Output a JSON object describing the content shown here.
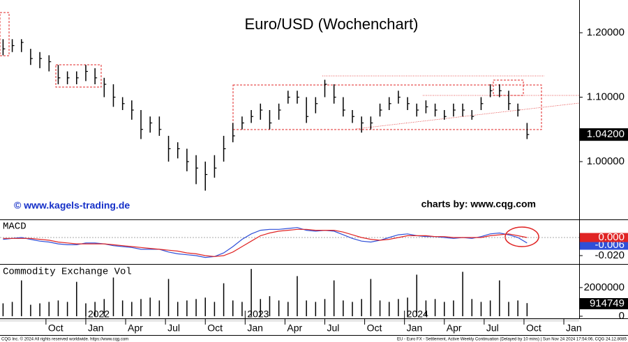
{
  "chart_data": [
    {
      "type": "ohlc",
      "title": "Euro/USD (Wochenchart)",
      "watermark_left": "© www.kagels-trading.de",
      "watermark_right": "charts by: www.cqg.com",
      "x": [
        0,
        3,
        6,
        9,
        12,
        15,
        18,
        21,
        24,
        27,
        30,
        33,
        36,
        39,
        42,
        45,
        48,
        51,
        54,
        57,
        60,
        63,
        66,
        69,
        72,
        75,
        78,
        81,
        84,
        87,
        90,
        93,
        96,
        99,
        102,
        105,
        108,
        111,
        114,
        117,
        120,
        123,
        126,
        129,
        132,
        135,
        138,
        141,
        144,
        147,
        150,
        153,
        156,
        159,
        162,
        165,
        168,
        171
      ],
      "high": [
        1.19,
        1.19,
        1.19,
        1.175,
        1.17,
        1.165,
        1.15,
        1.14,
        1.14,
        1.15,
        1.145,
        1.13,
        1.12,
        1.1,
        1.095,
        1.08,
        1.07,
        1.07,
        1.04,
        1.03,
        1.02,
        1.01,
        1.0,
        1.01,
        1.04,
        1.06,
        1.07,
        1.08,
        1.09,
        1.08,
        1.09,
        1.11,
        1.11,
        1.1,
        1.1,
        1.127,
        1.12,
        1.1,
        1.08,
        1.07,
        1.07,
        1.09,
        1.1,
        1.11,
        1.1,
        1.09,
        1.095,
        1.09,
        1.08,
        1.09,
        1.09,
        1.08,
        1.1,
        1.12,
        1.12,
        1.11,
        1.09,
        1.06
      ],
      "low": [
        1.165,
        1.17,
        1.17,
        1.15,
        1.145,
        1.14,
        1.12,
        1.12,
        1.12,
        1.125,
        1.12,
        1.1,
        1.085,
        1.08,
        1.065,
        1.035,
        1.045,
        1.04,
        1.0,
        1.005,
        0.985,
        0.965,
        0.955,
        0.975,
        1.0,
        1.03,
        1.05,
        1.06,
        1.065,
        1.05,
        1.065,
        1.09,
        1.09,
        1.06,
        1.075,
        1.1,
        1.09,
        1.07,
        1.06,
        1.045,
        1.05,
        1.07,
        1.08,
        1.09,
        1.08,
        1.07,
        1.075,
        1.07,
        1.065,
        1.07,
        1.07,
        1.065,
        1.08,
        1.1,
        1.1,
        1.08,
        1.07,
        1.035
      ],
      "close": [
        1.175,
        1.18,
        1.185,
        1.16,
        1.16,
        1.155,
        1.13,
        1.13,
        1.13,
        1.14,
        1.13,
        1.12,
        1.1,
        1.09,
        1.08,
        1.05,
        1.06,
        1.05,
        1.02,
        1.02,
        1.0,
        0.99,
        0.98,
        0.99,
        1.02,
        1.04,
        1.06,
        1.07,
        1.08,
        1.06,
        1.08,
        1.1,
        1.1,
        1.07,
        1.09,
        1.12,
        1.1,
        1.08,
        1.07,
        1.06,
        1.06,
        1.08,
        1.09,
        1.1,
        1.09,
        1.08,
        1.085,
        1.08,
        1.07,
        1.08,
        1.08,
        1.07,
        1.09,
        1.11,
        1.11,
        1.09,
        1.08,
        1.042
      ],
      "color": "#000000",
      "xlim": [
        -1,
        188
      ],
      "ylim": [
        0.9103,
        1.2508
      ],
      "yticks": [
        {
          "value": 1.0,
          "label": "1.00000"
        },
        {
          "value": 1.1,
          "label": "1.10000"
        },
        {
          "value": 1.2,
          "label": "1.20000"
        }
      ],
      "last_value": {
        "value": 1.042,
        "label": "1.04200"
      }
    },
    {
      "type": "line",
      "title": "MACD",
      "x": [
        0,
        3,
        6,
        9,
        12,
        15,
        18,
        21,
        24,
        27,
        30,
        33,
        36,
        39,
        42,
        45,
        48,
        51,
        54,
        57,
        60,
        63,
        66,
        69,
        72,
        75,
        78,
        81,
        84,
        87,
        90,
        93,
        96,
        99,
        102,
        105,
        108,
        111,
        114,
        117,
        120,
        123,
        126,
        129,
        132,
        135,
        138,
        141,
        144,
        147,
        150,
        153,
        156,
        159,
        162,
        165,
        168,
        171
      ],
      "series": [
        {
          "color": "#2f4fd8",
          "values": [
            -0.002,
            -0.001,
            0,
            -0.002,
            -0.004,
            -0.005,
            -0.007,
            -0.008,
            -0.008,
            -0.006,
            -0.006,
            -0.007,
            -0.009,
            -0.01,
            -0.011,
            -0.013,
            -0.013,
            -0.013,
            -0.016,
            -0.018,
            -0.019,
            -0.02,
            -0.022,
            -0.021,
            -0.017,
            -0.01,
            -0.002,
            0.004,
            0.008,
            0.009,
            0.009,
            0.01,
            0.011,
            0.008,
            0.007,
            0.008,
            0.007,
            0.003,
            -0.001,
            -0.004,
            -0.005,
            -0.003,
            0,
            0.003,
            0.004,
            0.002,
            0.001,
            0.001,
            0,
            -0.001,
            0,
            -0.001,
            0.001,
            0.004,
            0.005,
            0.003,
            0,
            -0.006
          ],
          "last_value": {
            "value": -0.006,
            "label": "-0.006"
          }
        },
        {
          "color": "#e02424",
          "values": [
            -0.001,
            -0.001,
            -0.001,
            -0.001,
            -0.002,
            -0.003,
            -0.005,
            -0.006,
            -0.007,
            -0.007,
            -0.007,
            -0.007,
            -0.008,
            -0.009,
            -0.01,
            -0.011,
            -0.012,
            -0.013,
            -0.014,
            -0.015,
            -0.017,
            -0.018,
            -0.02,
            -0.021,
            -0.02,
            -0.016,
            -0.01,
            -0.004,
            0.002,
            0.005,
            0.007,
            0.008,
            0.009,
            0.009,
            0.008,
            0.008,
            0.008,
            0.006,
            0.003,
            0,
            -0.002,
            -0.003,
            -0.002,
            0,
            0.002,
            0.002,
            0.002,
            0.001,
            0.001,
            0,
            0,
            0,
            0,
            0.002,
            0.003,
            0.004,
            0.002,
            0
          ],
          "last_value": {
            "value": 0,
            "label": "0.000"
          }
        }
      ],
      "xlim": [
        -1,
        188
      ],
      "ylim": [
        -0.0285,
        0.0177
      ],
      "yticks": [
        {
          "value": -0.02,
          "label": "-0.020"
        }
      ]
    },
    {
      "type": "bar",
      "title": "Commodity Exchange Vol",
      "x": [
        0,
        3,
        6,
        9,
        12,
        15,
        18,
        21,
        24,
        27,
        30,
        33,
        36,
        39,
        42,
        45,
        48,
        51,
        54,
        57,
        60,
        63,
        66,
        69,
        72,
        75,
        78,
        81,
        84,
        87,
        90,
        93,
        96,
        99,
        102,
        105,
        108,
        111,
        114,
        117,
        120,
        123,
        126,
        129,
        132,
        135,
        138,
        141,
        144,
        147,
        150,
        153,
        156,
        159,
        162,
        165,
        168,
        171
      ],
      "values": [
        900000,
        1000000,
        2500000,
        800000,
        900000,
        1000000,
        1100000,
        1000000,
        2400000,
        900000,
        1000000,
        1200000,
        2700000,
        1100000,
        1000000,
        1200000,
        1300000,
        1100000,
        2600000,
        1000000,
        1100000,
        1200000,
        1300000,
        1000000,
        2300000,
        1100000,
        1000000,
        3300000,
        1200000,
        1400000,
        1100000,
        1000000,
        2800000,
        1100000,
        1000000,
        1200000,
        2500000,
        1100000,
        1000000,
        1200000,
        2600000,
        1100000,
        1000000,
        1200000,
        1300000,
        2900000,
        1100000,
        1200000,
        1000000,
        1100000,
        3100000,
        1200000,
        1000000,
        1100000,
        2500000,
        1000000,
        1100000,
        914749
      ],
      "color": "#000000",
      "xlim": [
        -1,
        188
      ],
      "ylim": [
        0,
        3500000
      ],
      "yticks": [
        0,
        2000000
      ],
      "last_value": 914749,
      "xticks": [
        {
          "value": 14,
          "label": "Oct"
        },
        {
          "value": 27,
          "label": "Jan"
        },
        {
          "value": 40,
          "label": "Apr"
        },
        {
          "value": 53,
          "label": "Jul"
        },
        {
          "value": 66,
          "label": "Oct"
        },
        {
          "value": 79,
          "label": "Jan"
        },
        {
          "value": 92,
          "label": "Apr"
        },
        {
          "value": 105,
          "label": "Jul"
        },
        {
          "value": 118,
          "label": "Oct"
        },
        {
          "value": 131,
          "label": "Jan"
        },
        {
          "value": 144,
          "label": "Apr"
        },
        {
          "value": 157,
          "label": "Jul"
        },
        {
          "value": 170,
          "label": "Oct"
        },
        {
          "value": 183,
          "label": "Jan"
        }
      ],
      "year_labels": [
        {
          "value": 27,
          "label": "2022"
        },
        {
          "value": 79,
          "label": "2023"
        },
        {
          "value": 131,
          "label": "2024"
        }
      ]
    }
  ],
  "footer": {
    "left": "CQG Inc. © 2024 All rights reserved worldwide. https://www.cqg.com",
    "right": "EU - Euro FX - Settlement, Active Weekly Continuation (Delayed by 10 mins) | Sun Nov 24 2024 17:54:06, CQG 24.12.8085"
  }
}
